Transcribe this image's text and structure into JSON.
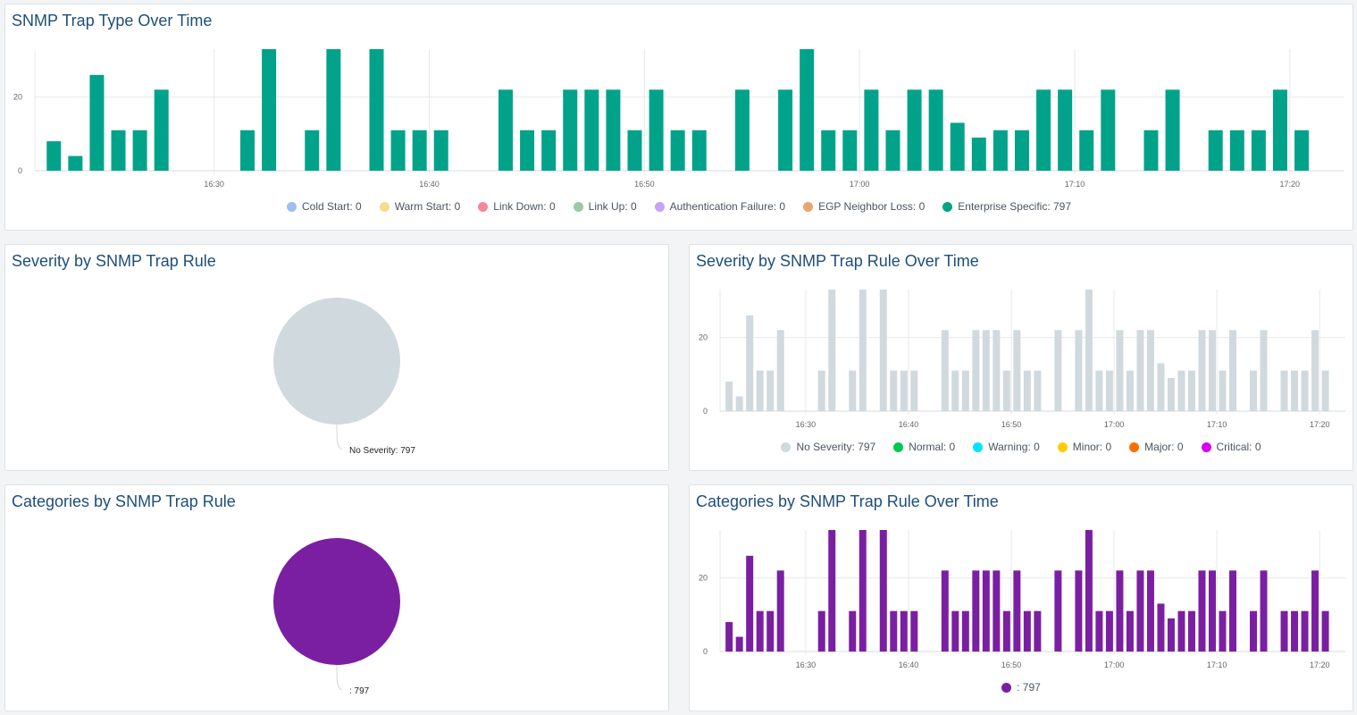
{
  "panels": {
    "trap_type_over_time": {
      "title": "SNMP Trap Type Over Time"
    },
    "severity_by_rule": {
      "title": "Severity by SNMP Trap Rule"
    },
    "severity_over_time": {
      "title": "Severity by SNMP Trap Rule Over Time"
    },
    "categories_by_rule": {
      "title": "Categories by SNMP Trap Rule"
    },
    "categories_over_time": {
      "title": "Categories by SNMP Trap Rule Over Time"
    }
  },
  "chart_data": [
    {
      "id": "trap_type_over_time",
      "type": "bar",
      "x": [
        "16:22",
        "16:23",
        "16:24",
        "16:25",
        "16:26",
        "16:27",
        "16:28",
        "16:29",
        "16:30",
        "16:31",
        "16:32",
        "16:33",
        "16:34",
        "16:35",
        "16:36",
        "16:37",
        "16:38",
        "16:39",
        "16:40",
        "16:41",
        "16:42",
        "16:43",
        "16:44",
        "16:45",
        "16:46",
        "16:47",
        "16:48",
        "16:49",
        "16:50",
        "16:51",
        "16:52",
        "16:53",
        "16:54",
        "16:55",
        "16:56",
        "16:57",
        "16:58",
        "16:59",
        "17:00",
        "17:01",
        "17:02",
        "17:03",
        "17:04",
        "17:05",
        "17:06",
        "17:07",
        "17:08",
        "17:09",
        "17:10",
        "17:11",
        "17:12",
        "17:13",
        "17:14",
        "17:15",
        "17:16",
        "17:17",
        "17:18",
        "17:19",
        "17:20"
      ],
      "series": [
        {
          "name": "Enterprise Specific",
          "color": "#00a389",
          "values": [
            8,
            4,
            26,
            11,
            11,
            22,
            0,
            0,
            0,
            11,
            33,
            0,
            11,
            33,
            0,
            33,
            11,
            11,
            11,
            0,
            0,
            22,
            11,
            11,
            22,
            22,
            22,
            11,
            22,
            11,
            11,
            0,
            22,
            0,
            22,
            33,
            11,
            11,
            22,
            11,
            22,
            22,
            13,
            9,
            11,
            11,
            22,
            22,
            11,
            22,
            0,
            11,
            22,
            0,
            11,
            11,
            11,
            22,
            11
          ]
        }
      ],
      "xticks": [
        "16:30",
        "16:40",
        "16:50",
        "17:00",
        "17:10",
        "17:20"
      ],
      "yticks": [
        0,
        20
      ],
      "xlim": [
        "16:21:40",
        "17:22:30"
      ],
      "ylim": [
        0,
        33
      ],
      "grid": true,
      "legend_position": "bottom",
      "legend": [
        {
          "label": "Cold Start: 0",
          "color": "#9ebff0"
        },
        {
          "label": "Warm Start: 0",
          "color": "#f7dc8f"
        },
        {
          "label": "Link Down: 0",
          "color": "#f5879a"
        },
        {
          "label": "Link Up: 0",
          "color": "#9dc8a4"
        },
        {
          "label": "Authentication Failure: 0",
          "color": "#c9a3f2"
        },
        {
          "label": "EGP Neighbor Loss: 0",
          "color": "#eba46b"
        },
        {
          "label": "Enterprise Specific: 797",
          "color": "#00a389"
        }
      ]
    },
    {
      "id": "severity_by_rule",
      "type": "pie",
      "slices": [
        {
          "label": "No Severity: 797",
          "value": 797,
          "color": "#d0d9de"
        }
      ]
    },
    {
      "id": "severity_over_time",
      "type": "bar",
      "x_same_as": "trap_type_over_time",
      "series": [
        {
          "name": "No Severity",
          "color": "#d0d9de"
        }
      ],
      "xticks": [
        "16:30",
        "16:40",
        "16:50",
        "17:00",
        "17:10",
        "17:20"
      ],
      "yticks": [
        0,
        20
      ],
      "xlim": [
        "16:21:40",
        "17:22:30"
      ],
      "ylim": [
        0,
        33
      ],
      "grid": true,
      "legend_position": "bottom",
      "legend": [
        {
          "label": "No Severity: 797",
          "color": "#d0d9de"
        },
        {
          "label": "Normal: 0",
          "color": "#00c853"
        },
        {
          "label": "Warning: 0",
          "color": "#00e5ff"
        },
        {
          "label": "Minor: 0",
          "color": "#ffcc00"
        },
        {
          "label": "Major: 0",
          "color": "#ff6d00"
        },
        {
          "label": "Critical: 0",
          "color": "#d500f9"
        }
      ]
    },
    {
      "id": "categories_by_rule",
      "type": "pie",
      "slices": [
        {
          "label": ": 797",
          "value": 797,
          "color": "#7b1fa2"
        }
      ]
    },
    {
      "id": "categories_over_time",
      "type": "bar",
      "x_same_as": "trap_type_over_time",
      "series": [
        {
          "name": "",
          "color": "#7b1fa2"
        }
      ],
      "xticks": [
        "16:30",
        "16:40",
        "16:50",
        "17:00",
        "17:10",
        "17:20"
      ],
      "yticks": [
        0,
        20
      ],
      "xlim": [
        "16:21:40",
        "17:22:30"
      ],
      "ylim": [
        0,
        33
      ],
      "grid": true,
      "legend_position": "bottom",
      "legend": [
        {
          "label": ": 797",
          "color": "#7b1fa2"
        }
      ]
    }
  ]
}
